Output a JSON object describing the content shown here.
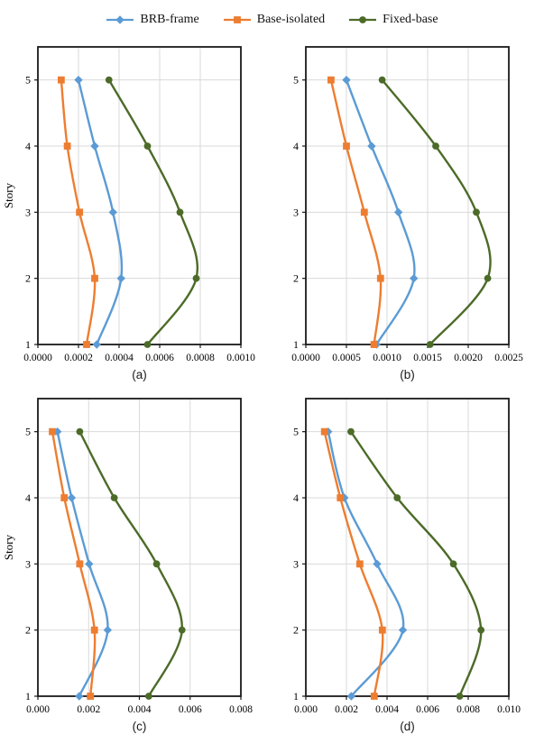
{
  "page": {
    "background": "#ffffff"
  },
  "style": {
    "grid_color": "#d9d9d9",
    "axis_color": "#1a1a1a",
    "text_color": "#000000",
    "line_width": 2.4,
    "accent_blue": "#5B9BD5",
    "accent_orange": "#ED7D31",
    "accent_green": "#4C6B28"
  },
  "legend": {
    "items": [
      {
        "label": "BRB-frame",
        "color": "#5B9BD5",
        "marker": "diamond"
      },
      {
        "label": "Base-isolated",
        "color": "#ED7D31",
        "marker": "square"
      },
      {
        "label": "Fixed-base",
        "color": "#4C6B28",
        "marker": "circle"
      }
    ]
  },
  "chart_data": [
    {
      "id": "a",
      "type": "line",
      "caption": "(a)",
      "ylabel": "Story",
      "y_categories": [
        "1",
        "2",
        "3",
        "4",
        "5"
      ],
      "y_min": 1,
      "y_max": 5.5,
      "x_min": 0,
      "x_max": 0.001,
      "x_tick_labels": [
        "0.0000",
        "0.0002",
        "0.0004",
        "0.0006",
        "0.0008",
        "0.0010"
      ],
      "grid": true,
      "legend_position": "top",
      "series": [
        {
          "name": "BRB-frame",
          "color": "#5B9BD5",
          "marker": "diamond",
          "values": [
            0.00029,
            0.00041,
            0.00037,
            0.00028,
            0.0002
          ]
        },
        {
          "name": "Base-isolated",
          "color": "#ED7D31",
          "marker": "square",
          "values": [
            0.00024,
            0.00028,
            0.000205,
            0.000145,
            0.000115
          ]
        },
        {
          "name": "Fixed-base",
          "color": "#4C6B28",
          "marker": "circle",
          "values": [
            0.00054,
            0.00078,
            0.0007,
            0.00054,
            0.00035
          ]
        }
      ]
    },
    {
      "id": "b",
      "type": "line",
      "caption": "(b)",
      "ylabel": "",
      "y_categories": [
        "1",
        "2",
        "3",
        "4",
        "5"
      ],
      "y_min": 1,
      "y_max": 5.5,
      "x_min": 0,
      "x_max": 0.0025,
      "x_tick_labels": [
        "0.0000",
        "0.0005",
        "0.0010",
        "0.0015",
        "0.0020",
        "0.0025"
      ],
      "grid": true,
      "legend_position": "top",
      "series": [
        {
          "name": "BRB-frame",
          "color": "#5B9BD5",
          "marker": "diamond",
          "values": [
            0.00087,
            0.00133,
            0.00114,
            0.00081,
            0.0005
          ]
        },
        {
          "name": "Base-isolated",
          "color": "#ED7D31",
          "marker": "square",
          "values": [
            0.00084,
            0.00092,
            0.00072,
            0.0005,
            0.00031
          ]
        },
        {
          "name": "Fixed-base",
          "color": "#4C6B28",
          "marker": "circle",
          "values": [
            0.00153,
            0.00224,
            0.0021,
            0.0016,
            0.00094
          ]
        }
      ]
    },
    {
      "id": "c",
      "type": "line",
      "caption": "(c)",
      "ylabel": "Story",
      "y_categories": [
        "1",
        "2",
        "3",
        "4",
        "5"
      ],
      "y_min": 1,
      "y_max": 5.5,
      "x_min": 0,
      "x_max": 0.008,
      "x_tick_labels": [
        "0.000",
        "0.002",
        "0.004",
        "0.006",
        "0.008"
      ],
      "grid": true,
      "legend_position": "top",
      "series": [
        {
          "name": "BRB-frame",
          "color": "#5B9BD5",
          "marker": "diamond",
          "values": [
            0.00163,
            0.00275,
            0.00202,
            0.00133,
            0.00077
          ]
        },
        {
          "name": "Base-isolated",
          "color": "#ED7D31",
          "marker": "square",
          "values": [
            0.00207,
            0.00223,
            0.00165,
            0.00104,
            0.00057
          ]
        },
        {
          "name": "Fixed-base",
          "color": "#4C6B28",
          "marker": "circle",
          "values": [
            0.00437,
            0.00568,
            0.00468,
            0.00301,
            0.00165
          ]
        }
      ]
    },
    {
      "id": "d",
      "type": "line",
      "caption": "(d)",
      "ylabel": "",
      "y_categories": [
        "1",
        "2",
        "3",
        "4",
        "5"
      ],
      "y_min": 1,
      "y_max": 5.5,
      "x_min": 0,
      "x_max": 0.01,
      "x_tick_labels": [
        "0.000",
        "0.002",
        "0.004",
        "0.006",
        "0.008",
        "0.010"
      ],
      "grid": true,
      "legend_position": "top",
      "series": [
        {
          "name": "BRB-frame",
          "color": "#5B9BD5",
          "marker": "diamond",
          "values": [
            0.00224,
            0.00478,
            0.00351,
            0.0019,
            0.0011
          ]
        },
        {
          "name": "Base-isolated",
          "color": "#ED7D31",
          "marker": "square",
          "values": [
            0.00337,
            0.00377,
            0.00266,
            0.0017,
            0.00092
          ]
        },
        {
          "name": "Fixed-base",
          "color": "#4C6B28",
          "marker": "circle",
          "values": [
            0.00758,
            0.00863,
            0.00727,
            0.0045,
            0.00222
          ]
        }
      ]
    }
  ]
}
